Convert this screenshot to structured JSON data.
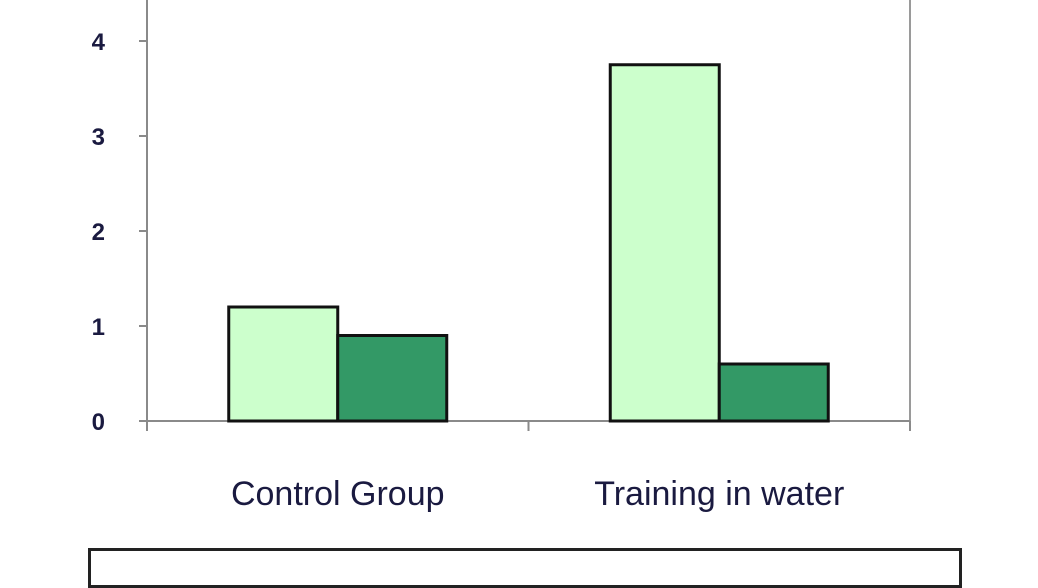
{
  "chart_data": {
    "type": "bar",
    "categories": [
      "Control Group",
      "Training in water"
    ],
    "series": [
      {
        "values": [
          1.2,
          3.75
        ],
        "color": "#ccffcc"
      },
      {
        "values": [
          0.9,
          0.6
        ],
        "color": "#339966"
      }
    ],
    "ylim": [
      0,
      4
    ],
    "yticks": [
      "0",
      "1",
      "2",
      "3",
      "4"
    ],
    "title": "",
    "xlabel": "",
    "ylabel": "",
    "grid": false,
    "legend": "bottom"
  }
}
